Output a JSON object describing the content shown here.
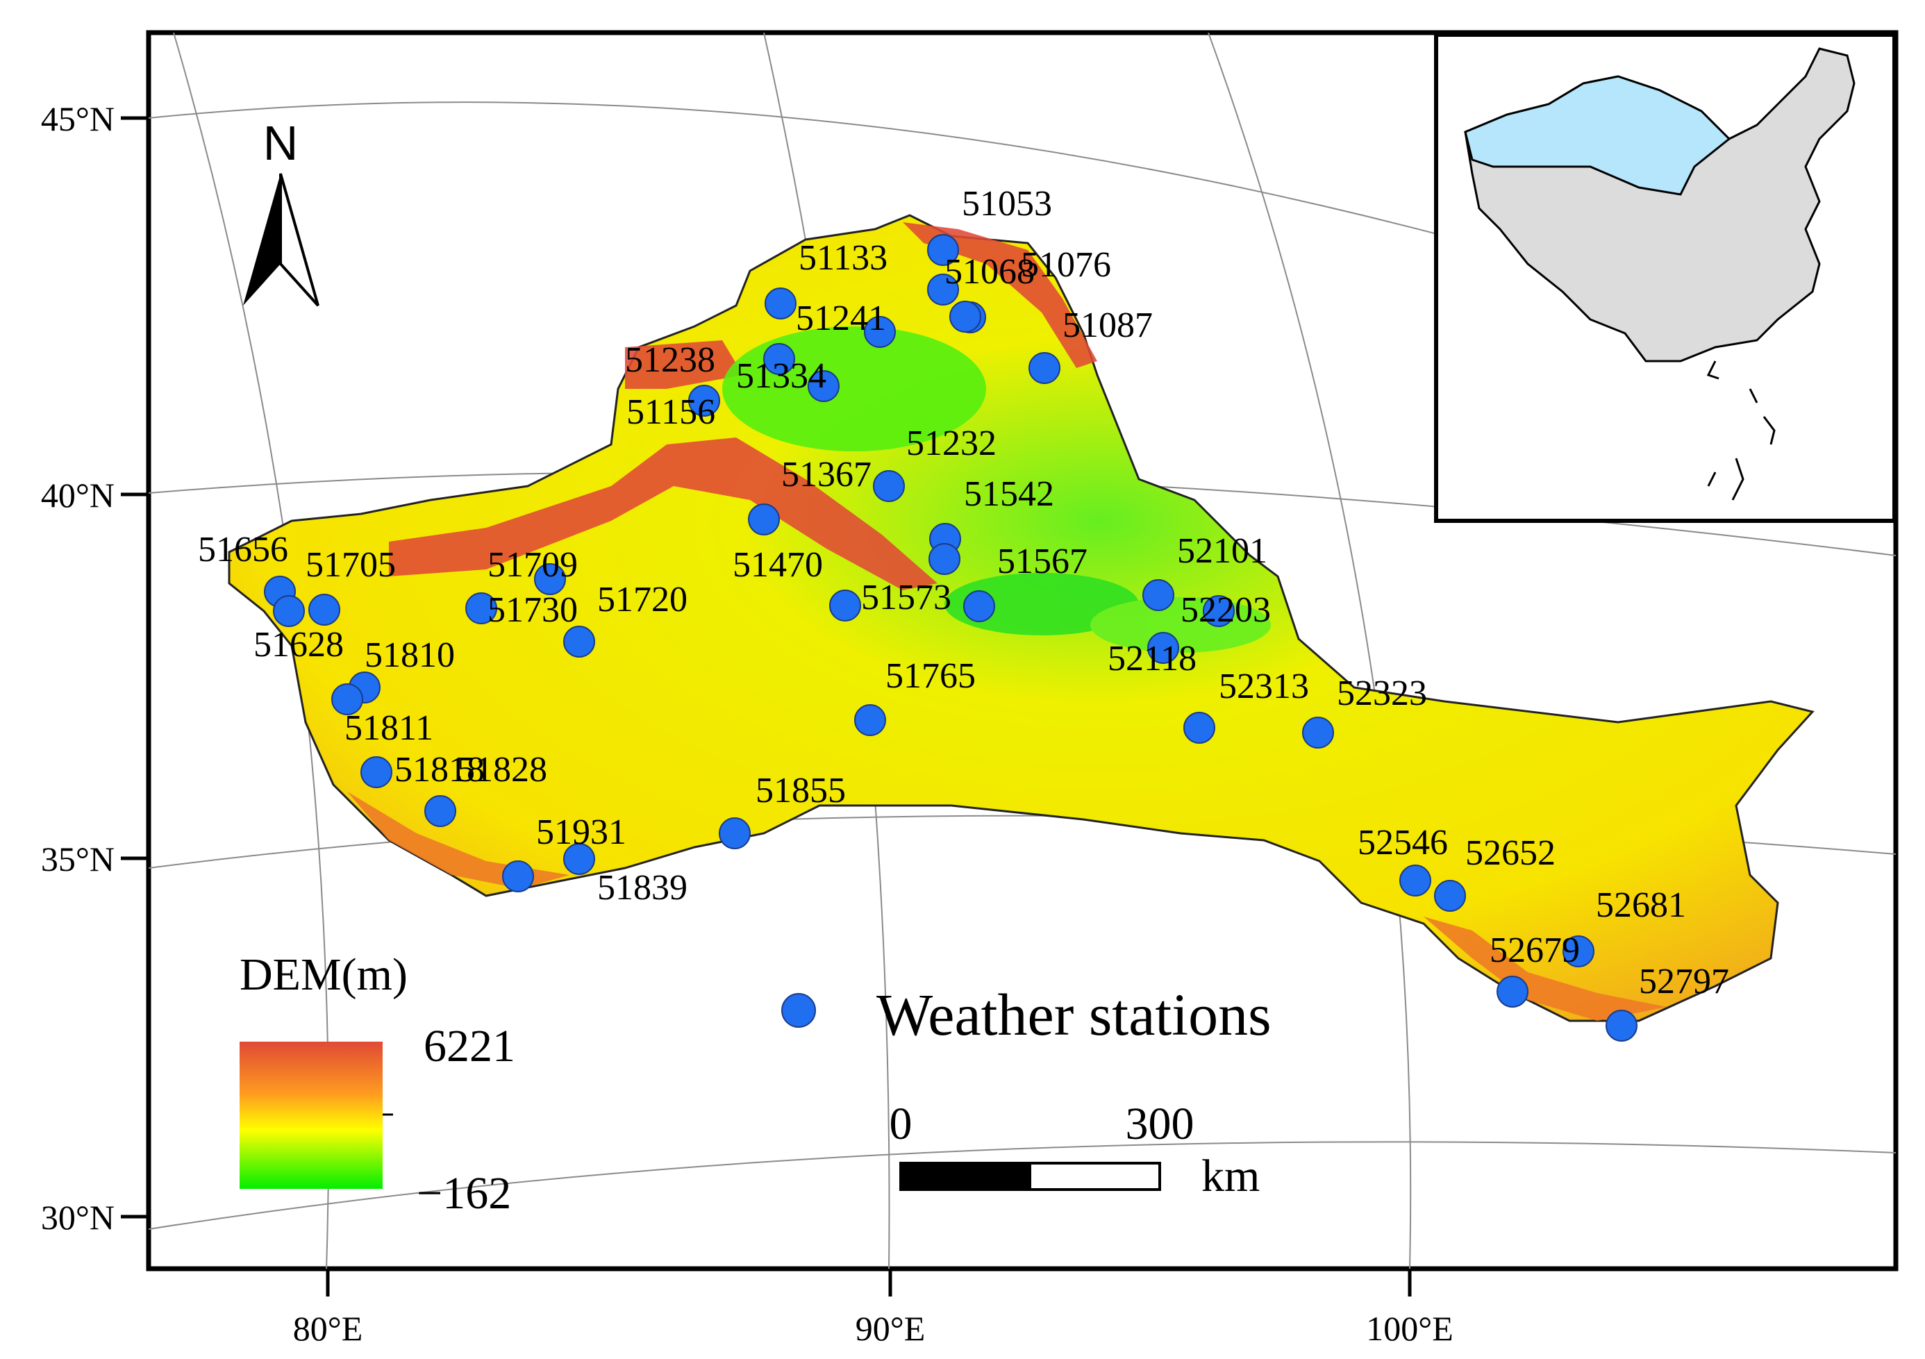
{
  "map": {
    "lat_labels": [
      "45°N",
      "40°N",
      "35°N",
      "30°N"
    ],
    "lon_labels": [
      "80°E",
      "90°E",
      "100°E"
    ],
    "north_label": "N",
    "legend": {
      "dem_title": "DEM(m)",
      "dem_max": "6221",
      "dem_min": "−162",
      "stations_label": "Weather stations"
    },
    "scale": {
      "zero": "0",
      "max": "300",
      "unit": "km"
    },
    "colors": {
      "station": "#1f6ff0",
      "dem_high": "#e04a35",
      "dem_mid": "#ffff00",
      "dem_low": "#00ee00",
      "inset_highlight": "#b5e6fb",
      "inset_land": "#dcdcdc"
    },
    "stations": [
      "51053",
      "51068",
      "51076",
      "51087",
      "51133",
      "51241",
      "51238",
      "51334",
      "51156",
      "51232",
      "51367",
      "51542",
      "51470",
      "51567",
      "51573",
      "51656",
      "51705",
      "51709",
      "51720",
      "51730",
      "51628",
      "51810",
      "51811",
      "51818",
      "51828",
      "51931",
      "51839",
      "51855",
      "51765",
      "52101",
      "52203",
      "52118",
      "52313",
      "52323",
      "52546",
      "52652",
      "52681",
      "52679",
      "52797"
    ]
  }
}
